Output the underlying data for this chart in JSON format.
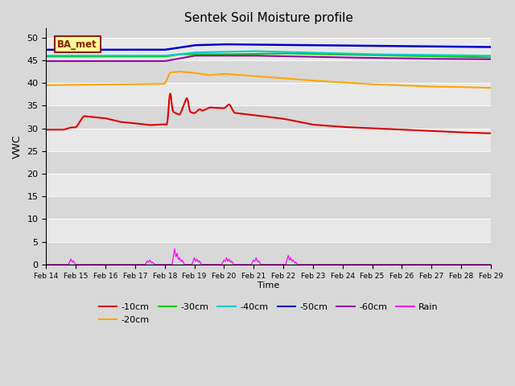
{
  "title": "Sentek Soil Moisture profile",
  "xlabel": "Time",
  "ylabel": "VWC",
  "ylim": [
    0,
    52
  ],
  "yticks": [
    0,
    5,
    10,
    15,
    20,
    25,
    30,
    35,
    40,
    45,
    50
  ],
  "x_start": 0,
  "x_end": 360,
  "n_points": 721,
  "fig_bg_color": "#d8d8d8",
  "plot_bg_color": "#e8e8e8",
  "label_box_text": "BA_met",
  "colors": {
    "-10cm": "#dd0000",
    "-20cm": "#ffa500",
    "-30cm": "#00cc00",
    "-40cm": "#00cccc",
    "-50cm": "#0000cc",
    "-60cm": "#9900aa",
    "Rain": "#ff00ff"
  },
  "xtick_labels": [
    "Feb 14",
    "Feb 15",
    "Feb 16",
    "Feb 17",
    "Feb 18",
    "Feb 19",
    "Feb 20",
    "Feb 21",
    "Feb 22",
    "Feb 23",
    "Feb 24",
    "Feb 25",
    "Feb 26",
    "Feb 27",
    "Feb 28",
    "Feb 29"
  ],
  "xtick_positions": [
    0,
    24,
    48,
    72,
    96,
    120,
    144,
    168,
    192,
    216,
    240,
    264,
    288,
    312,
    336,
    360
  ]
}
